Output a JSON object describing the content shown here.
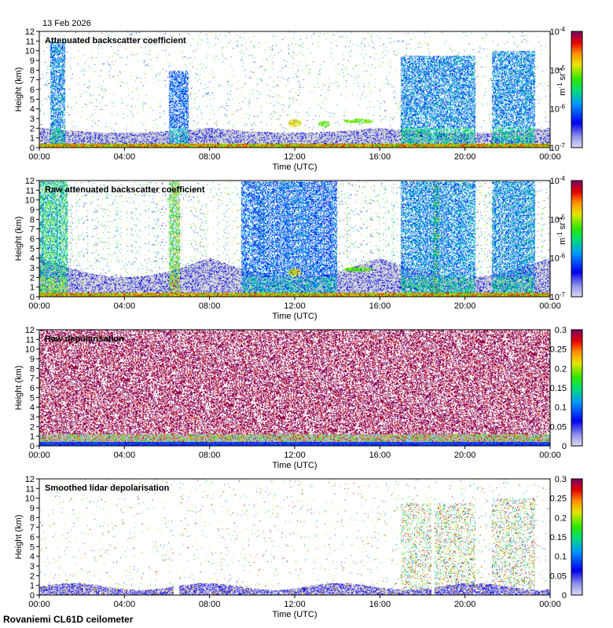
{
  "figure": {
    "date": "13 Feb 2026",
    "site_label": "Rovaniemi CL61D ceilometer"
  },
  "chart_data": [
    {
      "type": "heatmap",
      "title": "Attenuated backscatter coefficient",
      "xlabel": "Time (UTC)",
      "ylabel": "Height (km)",
      "x_ticks": [
        "00:00",
        "04:00",
        "08:00",
        "12:00",
        "16:00",
        "20:00",
        "00:00"
      ],
      "xlim_hours": [
        0,
        24
      ],
      "y_ticks": [
        0,
        1,
        2,
        3,
        4,
        5,
        6,
        7,
        8,
        9,
        10,
        11,
        12
      ],
      "ylim": [
        0,
        12
      ],
      "colorbar": {
        "scale": "log",
        "range": [
          1e-07,
          0.0001
        ],
        "ticks": [
          {
            "base": "10",
            "exp": "-4"
          },
          {
            "base": "10",
            "exp": "-5"
          },
          {
            "base": "10",
            "exp": "-6"
          },
          {
            "base": "10",
            "exp": "-7"
          }
        ],
        "unit": {
          "m": "m",
          "m_exp": "-1",
          "sr": "sr",
          "sr_exp": "-1"
        }
      },
      "features": {
        "noise_gray_top_km": [
          2.0,
          1.5
        ],
        "surface_layer_km": 0.35,
        "gaps_hours": [
          [
            6.3,
            6.55
          ],
          [
            18.45,
            18.6
          ]
        ],
        "columns": [
          {
            "start_h": 0.5,
            "end_h": 1.2,
            "top_km": 11,
            "level": 0.45
          },
          {
            "start_h": 6.1,
            "end_h": 7.0,
            "top_km": 8,
            "level": 0.4
          },
          {
            "start_h": 17.0,
            "end_h": 20.5,
            "top_km": 9.5,
            "level": 0.45
          },
          {
            "start_h": 21.3,
            "end_h": 23.3,
            "top_km": 10,
            "level": 0.45
          }
        ],
        "clouds": [
          {
            "center_h": 12.0,
            "center_km": 2.5,
            "width_h": 0.6,
            "height_km": 0.8,
            "level": 0.65
          },
          {
            "center_h": 13.4,
            "center_km": 2.4,
            "width_h": 0.6,
            "height_km": 0.6,
            "level": 0.55
          },
          {
            "center_h": 15.0,
            "center_km": 2.7,
            "width_h": 1.4,
            "height_km": 0.5,
            "level": 0.55
          }
        ],
        "sparse_upper_speckle": 0.4
      }
    },
    {
      "type": "heatmap",
      "title": "Raw attenuated backscatter coefficient",
      "xlabel": "Time (UTC)",
      "ylabel": "Height (km)",
      "x_ticks": [
        "00:00",
        "04:00",
        "08:00",
        "12:00",
        "16:00",
        "20:00",
        "00:00"
      ],
      "xlim_hours": [
        0,
        24
      ],
      "y_ticks": [
        0,
        1,
        2,
        3,
        4,
        5,
        6,
        7,
        8,
        9,
        10,
        11,
        12
      ],
      "ylim": [
        0,
        12
      ],
      "colorbar": {
        "scale": "log",
        "range": [
          1e-07,
          0.0001
        ],
        "ticks": [
          {
            "base": "10",
            "exp": "-4"
          },
          {
            "base": "10",
            "exp": "-5"
          },
          {
            "base": "10",
            "exp": "-6"
          },
          {
            "base": "10",
            "exp": "-7"
          }
        ],
        "unit": {
          "m": "m",
          "m_exp": "-1",
          "sr": "sr",
          "sr_exp": "-1"
        }
      },
      "features": {
        "noise_gray_top_km": [
          4.0,
          2.0
        ],
        "surface_layer_km": 0.35,
        "gaps_hours": [],
        "columns": [
          {
            "start_h": 0.0,
            "end_h": 1.3,
            "top_km": 12,
            "level": 0.6
          },
          {
            "start_h": 6.1,
            "end_h": 6.6,
            "top_km": 12,
            "level": 0.75
          },
          {
            "start_h": 9.5,
            "end_h": 14.0,
            "top_km": 12,
            "level": 0.4
          },
          {
            "start_h": 17.0,
            "end_h": 20.5,
            "top_km": 12,
            "level": 0.45
          },
          {
            "start_h": 18.5,
            "end_h": 18.8,
            "top_km": 12,
            "level": 0.75
          },
          {
            "start_h": 21.3,
            "end_h": 23.3,
            "top_km": 12,
            "level": 0.45
          }
        ],
        "clouds": [
          {
            "center_h": 12.0,
            "center_km": 2.5,
            "width_h": 0.6,
            "height_km": 0.8,
            "level": 0.65
          },
          {
            "center_h": 15.0,
            "center_km": 2.8,
            "width_h": 1.4,
            "height_km": 0.5,
            "level": 0.55
          }
        ],
        "sparse_upper_speckle": 0.75
      }
    },
    {
      "type": "heatmap",
      "title": "Raw depolarisation",
      "xlabel": "Time (UTC)",
      "ylabel": "Height (km)",
      "x_ticks": [
        "00:00",
        "04:00",
        "08:00",
        "12:00",
        "16:00",
        "20:00",
        "00:00"
      ],
      "xlim_hours": [
        0,
        24
      ],
      "y_ticks": [
        0,
        1,
        2,
        3,
        4,
        5,
        6,
        7,
        8,
        9,
        10,
        11,
        12
      ],
      "ylim": [
        0,
        12
      ],
      "colorbar": {
        "scale": "linear",
        "range": [
          0,
          0.3
        ],
        "ticks": [
          "0.3",
          "0.25",
          "0.2",
          "0.15",
          "0.1",
          "0.05",
          "0"
        ]
      },
      "features": {
        "mode": "noise",
        "surface_layer_km": 0.4
      }
    },
    {
      "type": "heatmap",
      "title": "Smoothed lidar depolarisation",
      "xlabel": "Time (UTC)",
      "ylabel": "Height (km)",
      "x_ticks": [
        "00:00",
        "04:00",
        "08:00",
        "12:00",
        "16:00",
        "20:00",
        "00:00"
      ],
      "xlim_hours": [
        0,
        24
      ],
      "y_ticks": [
        0,
        1,
        2,
        3,
        4,
        5,
        6,
        7,
        8,
        9,
        10,
        11,
        12
      ],
      "ylim": [
        0,
        12
      ],
      "colorbar": {
        "scale": "linear",
        "range": [
          0,
          0.3
        ],
        "ticks": [
          "0.3",
          "0.25",
          "0.2",
          "0.15",
          "0.1",
          "0.05",
          "0"
        ]
      },
      "features": {
        "mode": "smoothed",
        "boundary_layer_km": 1.2,
        "gaps_hours": [
          [
            6.3,
            6.55
          ],
          [
            18.45,
            18.6
          ]
        ],
        "columns": [
          {
            "start_h": 17.0,
            "end_h": 20.5,
            "top_km": 9.5
          },
          {
            "start_h": 21.3,
            "end_h": 23.3,
            "top_km": 10
          }
        ]
      }
    }
  ]
}
